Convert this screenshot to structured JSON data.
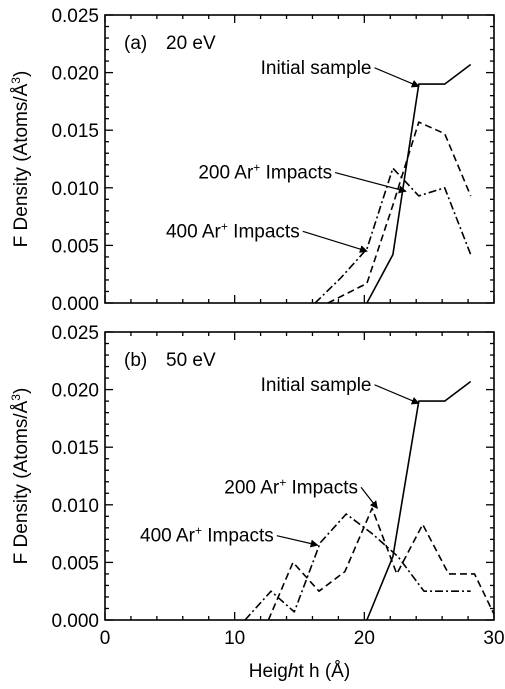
{
  "chart_data": [
    {
      "type": "line",
      "panel_label": "(a)",
      "energy": "20 eV",
      "xlim": [
        0,
        30
      ],
      "ylim": [
        0,
        0.025
      ],
      "x_ticks": [
        "0",
        "10",
        "20",
        "30"
      ],
      "y_ticks": [
        "0.000",
        "0.005",
        "0.010",
        "0.015",
        "0.020",
        "0.025"
      ],
      "ylabel": "F Density (Atoms/Å³)",
      "xlabel": "",
      "series": [
        {
          "name": "Initial sample",
          "style": "solid",
          "x": [
            20.2,
            22.2,
            24.2,
            26.2,
            28.2
          ],
          "y": [
            0.0,
            0.0042,
            0.019,
            0.019,
            0.0207
          ]
        },
        {
          "name": "200 Ar⁺ Impacts",
          "style": "dashed",
          "x": [
            17.2,
            20.2,
            22.2,
            24.2,
            26.2,
            28.2
          ],
          "y": [
            0.0,
            0.0017,
            0.0085,
            0.0157,
            0.0147,
            0.0093
          ]
        },
        {
          "name": "400 Ar⁺ Impacts",
          "style": "dashdot",
          "x": [
            16.2,
            18.2,
            20.2,
            22.2,
            24.2,
            26.2,
            28.2
          ],
          "y": [
            0.0,
            0.0022,
            0.0047,
            0.0117,
            0.0093,
            0.01,
            0.0042
          ]
        }
      ],
      "annotations": [
        {
          "text": "Initial sample",
          "label_x": 12.0,
          "label_y": 0.0199,
          "arrow_to_x": 24.2,
          "arrow_to_y": 0.0188
        },
        {
          "text": "200 Ar⁺ Impacts",
          "label_x": 7.2,
          "label_y": 0.0108,
          "arrow_to_x": 23.2,
          "arrow_to_y": 0.0097
        },
        {
          "text": "400 Ar⁺ Impacts",
          "label_x": 4.7,
          "label_y": 0.0057,
          "arrow_to_x": 20.2,
          "arrow_to_y": 0.0045
        }
      ]
    },
    {
      "type": "line",
      "panel_label": "(b)",
      "energy": "50 eV",
      "xlim": [
        0,
        30
      ],
      "ylim": [
        0,
        0.025
      ],
      "x_ticks": [
        "0",
        "10",
        "20",
        "30"
      ],
      "y_ticks": [
        "0.000",
        "0.005",
        "0.010",
        "0.015",
        "0.020",
        "0.025"
      ],
      "ylabel": "F Density (Atoms/Å³)",
      "xlabel": "Height h (Å)",
      "series": [
        {
          "name": "Initial sample",
          "style": "solid",
          "x": [
            20.2,
            22.2,
            24.2,
            26.2,
            28.2
          ],
          "y": [
            0.0,
            0.0055,
            0.019,
            0.019,
            0.0207
          ]
        },
        {
          "name": "200 Ar⁺ Impacts",
          "style": "dashed",
          "x": [
            12.6,
            14.5,
            16.5,
            18.5,
            20.6,
            22.5,
            24.5,
            26.5,
            28.5,
            30.0
          ],
          "y": [
            0.0,
            0.005,
            0.0025,
            0.0042,
            0.0097,
            0.004,
            0.0083,
            0.004,
            0.004,
            0.0005
          ]
        },
        {
          "name": "400 Ar⁺ Impacts",
          "style": "dashdot",
          "x": [
            10.8,
            12.8,
            14.6,
            16.6,
            18.6,
            20.6,
            22.6,
            24.6,
            26.6,
            28.2
          ],
          "y": [
            0.0,
            0.0025,
            0.0007,
            0.0067,
            0.0092,
            0.0075,
            0.0055,
            0.0025,
            0.0025,
            0.0025
          ]
        }
      ],
      "annotations": [
        {
          "text": "Initial sample",
          "label_x": 12.0,
          "label_y": 0.0199,
          "arrow_to_x": 24.2,
          "arrow_to_y": 0.0188
        },
        {
          "text": "200 Ar⁺ Impacts",
          "label_x": 9.2,
          "label_y": 0.011,
          "arrow_to_x": 21.0,
          "arrow_to_y": 0.0097
        },
        {
          "text": "400 Ar⁺ Impacts",
          "label_x": 2.7,
          "label_y": 0.0068,
          "arrow_to_x": 16.4,
          "arrow_to_y": 0.0065
        }
      ]
    }
  ]
}
